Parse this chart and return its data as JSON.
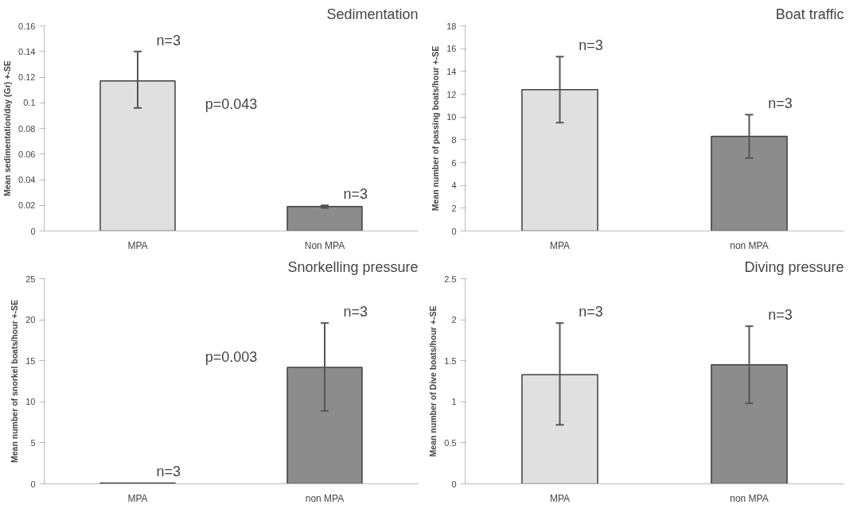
{
  "chart_data": [
    {
      "type": "bar",
      "title": "Sedimentation",
      "ylabel": "Mean sedimentation/day (Gr) +-SE",
      "categories": [
        "MPA",
        "Non MPA"
      ],
      "values": [
        0.117,
        0.019
      ],
      "colors": [
        "#e0e0e0",
        "#8c8c8c"
      ],
      "errors": [
        [
          0.096,
          0.14
        ],
        [
          0.018,
          0.02
        ]
      ],
      "ylim": [
        0,
        0.16
      ],
      "yticks": [
        0,
        0.02,
        0.04,
        0.06,
        0.08,
        {
          "value": 0.1,
          "label": "0.1"
        },
        0.12,
        0.14,
        0.16
      ],
      "grid": false,
      "annotations": [
        {
          "text": "n=3",
          "x": "MPA",
          "y": 0.14
        },
        {
          "text": "n=3",
          "x": "Non MPA",
          "y": 0.02
        },
        "p=0.043"
      ]
    },
    {
      "type": "bar",
      "title": "Boat traffic",
      "ylabel": "Mean number of passing boats/hour +-SE",
      "categories": [
        "MPA",
        "non MPA"
      ],
      "values": [
        12.4,
        8.3
      ],
      "colors": [
        "#e0e0e0",
        "#8c8c8c"
      ],
      "errors": [
        [
          9.5,
          15.3
        ],
        [
          6.4,
          10.2
        ]
      ],
      "ylim": [
        0,
        18
      ],
      "yticks": [
        0,
        2,
        4,
        6,
        8,
        10,
        12,
        14,
        16,
        18
      ],
      "grid": false,
      "annotations": [
        {
          "text": "n=3",
          "x": "MPA",
          "y": 15.3
        },
        {
          "text": "n=3",
          "x": "non MPA",
          "y": 10.2
        }
      ]
    },
    {
      "type": "bar",
      "title": "Snorkelling pressure",
      "ylabel": "Mean number of snorkel boats/hour +-SE",
      "categories": [
        "MPA",
        "non MPA"
      ],
      "values": [
        0.1,
        14.2
      ],
      "colors": [
        "#e0e0e0",
        "#8c8c8c"
      ],
      "errors": [
        null,
        [
          8.9,
          19.6
        ]
      ],
      "ylim": [
        0,
        25
      ],
      "yticks": [
        0,
        5,
        10,
        15,
        20,
        25
      ],
      "grid": false,
      "annotations": [
        {
          "text": "n=3",
          "x": "MPA",
          "y": 0.1
        },
        {
          "text": "n=3",
          "x": "non MPA",
          "y": 19.6
        },
        "p=0.003"
      ]
    },
    {
      "type": "bar",
      "title": "Diving pressure",
      "ylabel": "Mean number of Dive boats/hour +-SE",
      "categories": [
        "MPA",
        "non MPA"
      ],
      "values": [
        1.33,
        1.45
      ],
      "colors": [
        "#e0e0e0",
        "#8c8c8c"
      ],
      "errors": [
        [
          0.72,
          1.96
        ],
        [
          0.98,
          1.92
        ]
      ],
      "ylim": [
        0,
        2.5
      ],
      "yticks": [
        0,
        0.5,
        1,
        1.5,
        2,
        2.5
      ],
      "grid": false,
      "annotations": [
        {
          "text": "n=3",
          "x": "MPA",
          "y": 1.96
        },
        {
          "text": "n=3",
          "x": "non MPA",
          "y": 1.92
        }
      ]
    }
  ]
}
